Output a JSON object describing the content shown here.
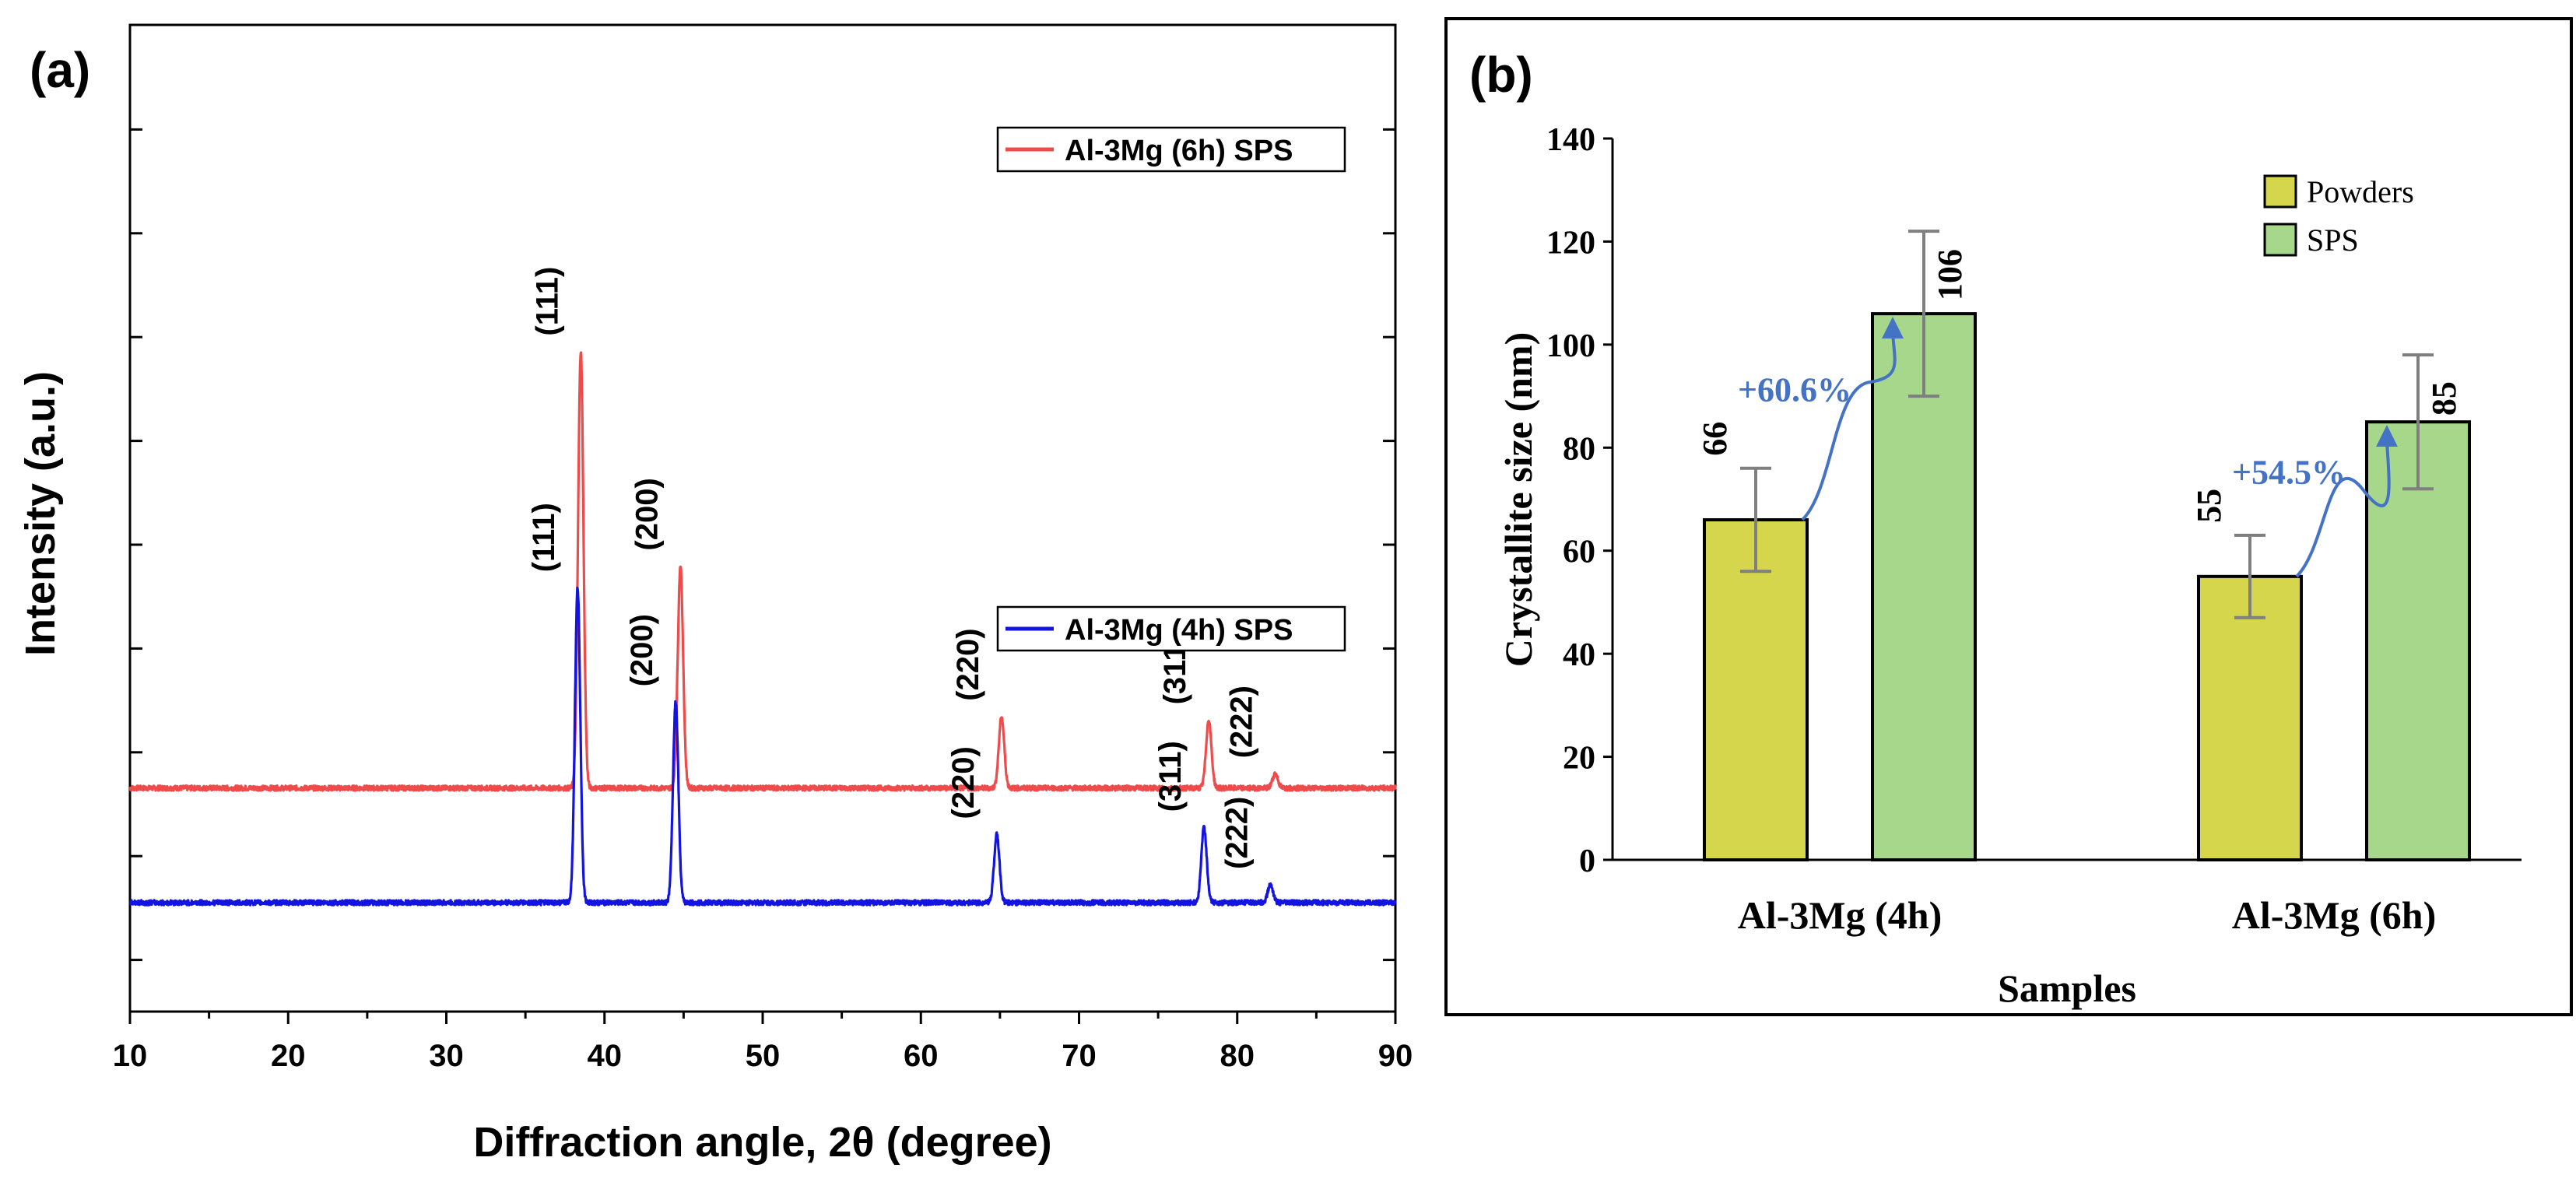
{
  "panel_a": {
    "label": "(a)",
    "chart_data": {
      "type": "line",
      "title": "",
      "xlabel": "Diffraction angle, 2θ (degree)",
      "ylabel": "Intensity (a.u.)",
      "xlim": [
        10,
        90
      ],
      "xticks": [
        "10",
        "20",
        "30",
        "40",
        "50",
        "60",
        "70",
        "80",
        "90"
      ],
      "series": [
        {
          "name": "Al-3Mg (6h) SPS",
          "color": "#ef4b4b",
          "baseline": 1.6,
          "peaks": [
            {
              "hkl": "(111)",
              "x": 38.5,
              "height": 6.1
            },
            {
              "hkl": "(200)",
              "x": 44.8,
              "height": 3.1
            },
            {
              "hkl": "(220)",
              "x": 65.1,
              "height": 1.0
            },
            {
              "hkl": "(311)",
              "x": 78.2,
              "height": 0.95
            },
            {
              "hkl": "(222)",
              "x": 82.4,
              "height": 0.2
            }
          ]
        },
        {
          "name": "Al-3Mg (4h) SPS",
          "color": "#1414e0",
          "baseline": 0.0,
          "peaks": [
            {
              "hkl": "(111)",
              "x": 38.3,
              "height": 4.4
            },
            {
              "hkl": "(200)",
              "x": 44.5,
              "height": 2.8
            },
            {
              "hkl": "(220)",
              "x": 64.8,
              "height": 0.95
            },
            {
              "hkl": "(311)",
              "x": 77.9,
              "height": 1.05
            },
            {
              "hkl": "(222)",
              "x": 82.1,
              "height": 0.25
            }
          ]
        }
      ]
    }
  },
  "panel_b": {
    "label": "(b)",
    "chart_data": {
      "type": "bar",
      "title": "",
      "xlabel": "Samples",
      "ylabel": "Crystallite size (nm)",
      "ylim": [
        0,
        140
      ],
      "yticks": [
        "0",
        "20",
        "40",
        "60",
        "80",
        "100",
        "120",
        "140"
      ],
      "categories": [
        "Al-3Mg (4h)",
        "Al-3Mg (6h)"
      ],
      "series": [
        {
          "name": "Powders",
          "color": "#d6d64c",
          "values": [
            66,
            55
          ],
          "errors": [
            10,
            8
          ],
          "labels": [
            "66",
            "55"
          ]
        },
        {
          "name": "SPS",
          "color": "#a6d78a",
          "values": [
            106,
            85
          ],
          "errors": [
            16,
            13
          ],
          "labels": [
            "106",
            "85"
          ]
        }
      ],
      "annotations": [
        {
          "category": "Al-3Mg (4h)",
          "text": "+60.6%"
        },
        {
          "category": "Al-3Mg (6h)",
          "text": "+54.5%"
        }
      ]
    }
  }
}
